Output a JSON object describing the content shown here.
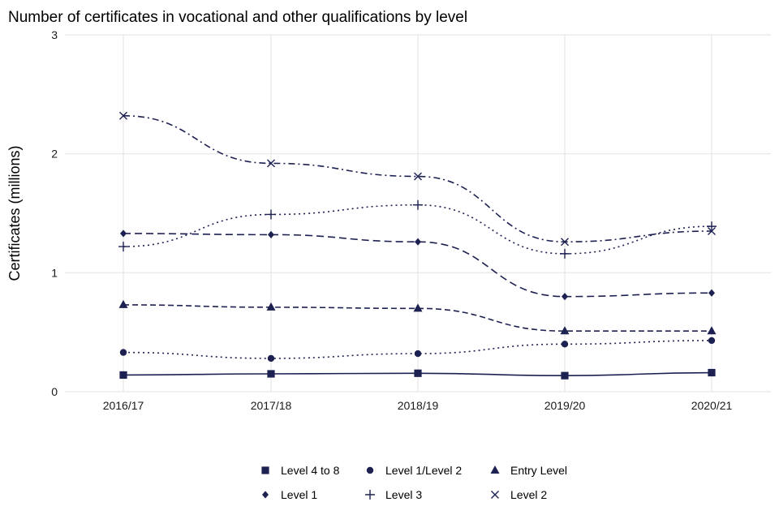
{
  "chart_data": {
    "type": "line",
    "title": "Number of certificates in vocational and other qualifications by level",
    "xlabel": "",
    "ylabel": "Certificates (millions)",
    "categories": [
      "2016/17",
      "2017/18",
      "2018/19",
      "2019/20",
      "2020/21"
    ],
    "ylim": [
      0,
      3
    ],
    "yticks": [
      0,
      1,
      2,
      3
    ],
    "grid": true,
    "legend_position": "bottom",
    "color": "#1d2151",
    "series": [
      {
        "name": "Level 4 to 8",
        "marker": "square",
        "line_style": "solid",
        "values": [
          0.14,
          0.15,
          0.155,
          0.135,
          0.16
        ]
      },
      {
        "name": "Level 1/Level 2",
        "marker": "circle",
        "line_style": "dotted",
        "values": [
          0.33,
          0.28,
          0.32,
          0.4,
          0.43
        ]
      },
      {
        "name": "Entry Level",
        "marker": "triangle",
        "line_style": "dashed",
        "values": [
          0.73,
          0.71,
          0.7,
          0.51,
          0.51
        ]
      },
      {
        "name": "Level 1",
        "marker": "diamond",
        "line_style": "longdash",
        "values": [
          1.33,
          1.32,
          1.26,
          0.8,
          0.83
        ]
      },
      {
        "name": "Level 3",
        "marker": "plus",
        "line_style": "dotted",
        "values": [
          1.22,
          1.49,
          1.57,
          1.16,
          1.39
        ]
      },
      {
        "name": "Level 2",
        "marker": "cross",
        "line_style": "dotdash",
        "values": [
          2.32,
          1.92,
          1.81,
          1.26,
          1.35
        ]
      }
    ]
  }
}
